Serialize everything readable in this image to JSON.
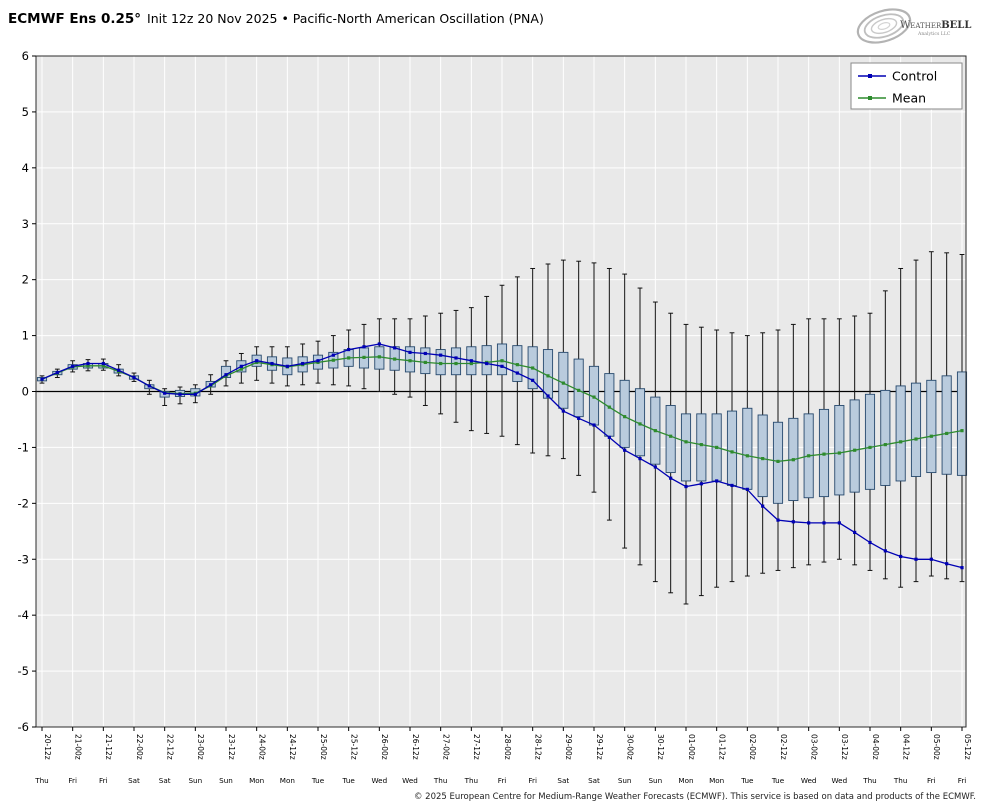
{
  "header": {
    "title_model": "ECMWF Ens 0.25°",
    "title_detail": "Init 12z 20 Nov 2025 • Pacific-North American Oscillation (PNA)"
  },
  "logo": {
    "brand_prefix": "Weather",
    "brand_suffix": "BELL",
    "tagline": "Analytics LLC"
  },
  "footer": {
    "copyright": "© 2025 European Centre for Medium-Range Weather Forecasts (ECMWF). This service is based on data and products of the ECMWF."
  },
  "chart_data": {
    "type": "boxplot-line-combo",
    "title": "ECMWF Ens 0.25° Init 12z 20 Nov 2025 • Pacific-North American Oscillation (PNA)",
    "ylabel": "",
    "ylim": [
      -6,
      6
    ],
    "yticks": [
      -6,
      -5,
      -4,
      -3,
      -2,
      -1,
      0,
      1,
      2,
      3,
      4,
      5,
      6
    ],
    "grid": true,
    "legend_position": "upper right",
    "step_hours": 6,
    "x_labels": [
      {
        "t": "20-12z",
        "d": "Thu"
      },
      {
        "t": "21-00z",
        "d": "Fri"
      },
      {
        "t": "21-12z",
        "d": "Fri"
      },
      {
        "t": "22-00z",
        "d": "Sat"
      },
      {
        "t": "22-12z",
        "d": "Sat"
      },
      {
        "t": "23-00z",
        "d": "Sun"
      },
      {
        "t": "23-12z",
        "d": "Sun"
      },
      {
        "t": "24-00z",
        "d": "Mon"
      },
      {
        "t": "24-12z",
        "d": "Mon"
      },
      {
        "t": "25-00z",
        "d": "Tue"
      },
      {
        "t": "25-12z",
        "d": "Tue"
      },
      {
        "t": "26-00z",
        "d": "Wed"
      },
      {
        "t": "26-12z",
        "d": "Wed"
      },
      {
        "t": "27-00z",
        "d": "Thu"
      },
      {
        "t": "27-12z",
        "d": "Thu"
      },
      {
        "t": "28-00z",
        "d": "Fri"
      },
      {
        "t": "28-12z",
        "d": "Fri"
      },
      {
        "t": "29-00z",
        "d": "Sat"
      },
      {
        "t": "29-12z",
        "d": "Sat"
      },
      {
        "t": "30-00z",
        "d": "Sun"
      },
      {
        "t": "30-12z",
        "d": "Sun"
      },
      {
        "t": "01-00z",
        "d": "Mon"
      },
      {
        "t": "01-12z",
        "d": "Mon"
      },
      {
        "t": "02-00z",
        "d": "Tue"
      },
      {
        "t": "02-12z",
        "d": "Tue"
      },
      {
        "t": "03-00z",
        "d": "Wed"
      },
      {
        "t": "03-12z",
        "d": "Wed"
      },
      {
        "t": "04-00z",
        "d": "Thu"
      },
      {
        "t": "04-12z",
        "d": "Thu"
      },
      {
        "t": "05-00z",
        "d": "Fri"
      },
      {
        "t": "05-12z",
        "d": "Fri"
      }
    ],
    "series": [
      {
        "name": "Control",
        "color": "#0000b4",
        "values": [
          0.22,
          0.34,
          0.45,
          0.5,
          0.5,
          0.38,
          0.25,
          0.1,
          -0.03,
          -0.05,
          -0.05,
          0.12,
          0.3,
          0.45,
          0.55,
          0.5,
          0.45,
          0.5,
          0.55,
          0.65,
          0.75,
          0.8,
          0.85,
          0.78,
          0.7,
          0.68,
          0.65,
          0.6,
          0.55,
          0.5,
          0.45,
          0.33,
          0.2,
          -0.08,
          -0.35,
          -0.48,
          -0.6,
          -0.82,
          -1.05,
          -1.2,
          -1.35,
          -1.55,
          -1.7,
          -1.65,
          -1.6,
          -1.68,
          -1.75,
          -2.05,
          -2.3,
          -2.33,
          -2.35,
          -2.35,
          -2.35,
          -2.52,
          -2.7,
          -2.85,
          -2.95,
          -3.0,
          -3.0,
          -3.08,
          -3.15
        ]
      },
      {
        "name": "Mean",
        "color": "#2e8b2e",
        "values": [
          0.22,
          0.33,
          0.44,
          0.46,
          0.46,
          0.36,
          0.25,
          0.1,
          -0.02,
          -0.04,
          -0.03,
          0.1,
          0.28,
          0.4,
          0.52,
          0.48,
          0.44,
          0.48,
          0.52,
          0.56,
          0.6,
          0.61,
          0.62,
          0.58,
          0.55,
          0.52,
          0.5,
          0.5,
          0.5,
          0.52,
          0.55,
          0.48,
          0.42,
          0.28,
          0.15,
          0.02,
          -0.1,
          -0.28,
          -0.45,
          -0.58,
          -0.7,
          -0.8,
          -0.9,
          -0.95,
          -1.0,
          -1.08,
          -1.15,
          -1.2,
          -1.25,
          -1.22,
          -1.15,
          -1.12,
          -1.1,
          -1.05,
          -1.0,
          -0.95,
          -0.9,
          -0.85,
          -0.8,
          -0.75,
          -0.7
        ]
      }
    ],
    "boxes": {
      "fill": "#b9cbdd",
      "edge": "#27496d",
      "whisker_color": "#111111",
      "q1": [
        0.19,
        0.3,
        0.4,
        0.42,
        0.42,
        0.33,
        0.22,
        0.05,
        -0.1,
        -0.09,
        -0.08,
        0.08,
        0.25,
        0.35,
        0.45,
        0.38,
        0.3,
        0.35,
        0.4,
        0.42,
        0.45,
        0.42,
        0.4,
        0.38,
        0.35,
        0.32,
        0.3,
        0.3,
        0.3,
        0.3,
        0.3,
        0.18,
        0.05,
        -0.12,
        -0.3,
        -0.45,
        -0.6,
        -0.8,
        -1.0,
        -1.15,
        -1.3,
        -1.45,
        -1.6,
        -1.6,
        -1.6,
        -1.68,
        -1.75,
        -1.88,
        -2.0,
        -1.95,
        -1.9,
        -1.88,
        -1.85,
        -1.8,
        -1.75,
        -1.68,
        -1.6,
        -1.52,
        -1.45,
        -1.48,
        -1.5
      ],
      "q3": [
        0.25,
        0.36,
        0.48,
        0.5,
        0.5,
        0.4,
        0.28,
        0.12,
        0.0,
        0.02,
        0.05,
        0.18,
        0.45,
        0.55,
        0.65,
        0.62,
        0.6,
        0.62,
        0.65,
        0.7,
        0.75,
        0.78,
        0.8,
        0.8,
        0.8,
        0.78,
        0.75,
        0.78,
        0.8,
        0.82,
        0.85,
        0.82,
        0.8,
        0.75,
        0.7,
        0.58,
        0.45,
        0.32,
        0.2,
        0.05,
        -0.1,
        -0.25,
        -0.4,
        -0.4,
        -0.4,
        -0.35,
        -0.3,
        -0.42,
        -0.55,
        -0.48,
        -0.4,
        -0.32,
        -0.25,
        -0.15,
        -0.05,
        0.02,
        0.1,
        0.15,
        0.2,
        0.28,
        0.35
      ],
      "lo": [
        0.15,
        0.25,
        0.35,
        0.37,
        0.38,
        0.28,
        0.18,
        -0.05,
        -0.25,
        -0.22,
        -0.2,
        -0.05,
        0.1,
        0.15,
        0.2,
        0.15,
        0.1,
        0.12,
        0.15,
        0.12,
        0.1,
        0.05,
        0.0,
        -0.05,
        -0.1,
        -0.25,
        -0.4,
        -0.55,
        -0.7,
        -0.75,
        -0.8,
        -0.95,
        -1.1,
        -1.15,
        -1.2,
        -1.5,
        -1.8,
        -2.3,
        -2.8,
        -3.1,
        -3.4,
        -3.6,
        -3.8,
        -3.65,
        -3.5,
        -3.4,
        -3.3,
        -3.25,
        -3.2,
        -3.15,
        -3.1,
        -3.05,
        -3.0,
        -3.1,
        -3.2,
        -3.35,
        -3.5,
        -3.4,
        -3.3,
        -3.35,
        -3.4
      ],
      "hi": [
        0.28,
        0.4,
        0.55,
        0.57,
        0.58,
        0.48,
        0.33,
        0.2,
        0.05,
        0.08,
        0.12,
        0.3,
        0.55,
        0.68,
        0.8,
        0.8,
        0.8,
        0.85,
        0.9,
        1.0,
        1.1,
        1.2,
        1.3,
        1.3,
        1.3,
        1.35,
        1.4,
        1.45,
        1.5,
        1.7,
        1.9,
        2.05,
        2.2,
        2.28,
        2.35,
        2.33,
        2.3,
        2.2,
        2.1,
        1.85,
        1.6,
        1.4,
        1.2,
        1.15,
        1.1,
        1.05,
        1.0,
        1.05,
        1.1,
        1.2,
        1.3,
        1.3,
        1.3,
        1.35,
        1.4,
        1.8,
        2.2,
        2.35,
        2.5,
        2.48,
        2.45
      ]
    },
    "colors": {
      "plot_bg": "#e9e9e9",
      "grid": "#ffffff",
      "zero_line": "#000000",
      "frame": "#2b2b2b"
    }
  }
}
